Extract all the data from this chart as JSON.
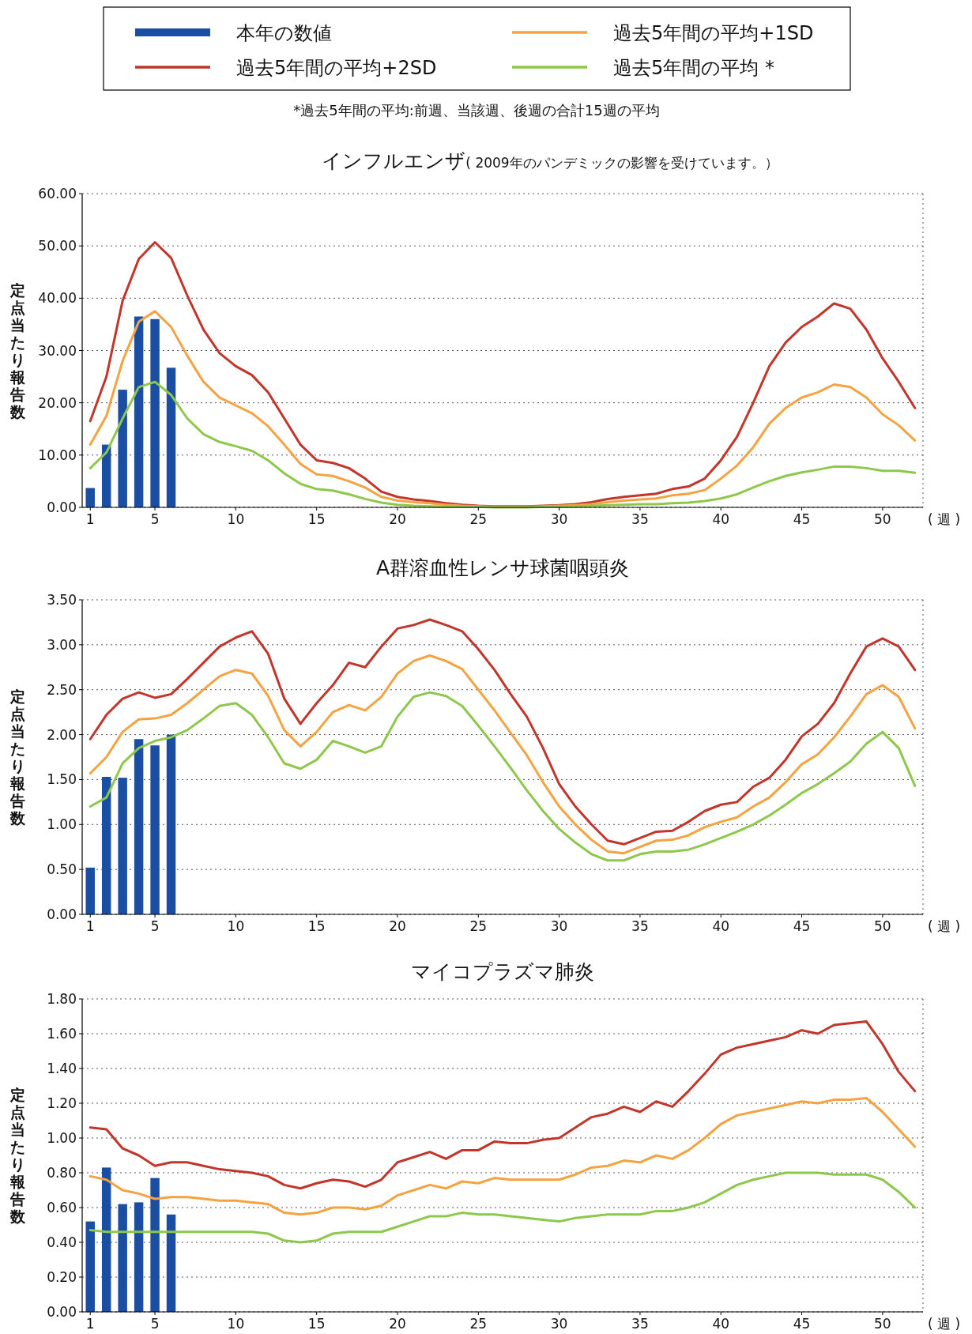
{
  "chart_data": [
    {
      "type": "line",
      "title": "インフルエンザ",
      "subtitle": "( 2009年のパンデミックの影響を受けています。）",
      "ylabel": "定点当たり報告数",
      "xlabel": "( 週 )",
      "legend": "top",
      "grid": "y",
      "annotations": [
        "*過去5年間の平均:前週、当該週、後週の合計15週の平均"
      ],
      "x": [
        1,
        2,
        3,
        4,
        5,
        6,
        7,
        8,
        9,
        10,
        11,
        12,
        13,
        14,
        15,
        16,
        17,
        18,
        19,
        20,
        21,
        22,
        23,
        24,
        25,
        26,
        27,
        28,
        29,
        30,
        31,
        32,
        33,
        34,
        35,
        36,
        37,
        38,
        39,
        40,
        41,
        42,
        43,
        44,
        45,
        46,
        47,
        48,
        49,
        50,
        51,
        52
      ],
      "xlim": [
        0.5,
        52.5
      ],
      "xticks": [
        1,
        5,
        10,
        15,
        20,
        25,
        30,
        35,
        40,
        45,
        50
      ],
      "ylim": [
        0,
        60
      ],
      "yticks": [
        {
          "value": 0,
          "label": "0.00"
        },
        {
          "value": 10,
          "label": "10.00"
        },
        {
          "value": 20,
          "label": "20.00"
        },
        {
          "value": 30,
          "label": "30.00"
        },
        {
          "value": 40,
          "label": "40.00"
        },
        {
          "value": 50,
          "label": "50.00"
        },
        {
          "value": 60,
          "label": "60.00"
        }
      ],
      "series": [
        {
          "type": "bar",
          "name": "本年の数値",
          "color": "#1a4ea2",
          "x": [
            1,
            2,
            3,
            4,
            5,
            6
          ],
          "values": [
            3.7,
            12,
            22.5,
            36.5,
            36,
            26.7
          ]
        },
        {
          "name": "過去5年間の平均+2SD",
          "color": "#c1352a",
          "values": [
            16.5,
            25,
            39.5,
            47.5,
            50.7,
            47.7,
            40.5,
            34,
            29.5,
            27,
            25.3,
            22,
            17,
            12,
            9,
            8.5,
            7.5,
            5.5,
            3,
            2,
            1.5,
            1.2,
            0.8,
            0.5,
            0.3,
            0.2,
            0.2,
            0.2,
            0.3,
            0.4,
            0.6,
            1,
            1.6,
            2,
            2.3,
            2.6,
            3.5,
            4,
            5.5,
            9,
            13.5,
            20,
            27,
            31.5,
            34.5,
            36.5,
            39,
            38,
            34,
            28.5,
            24,
            19
          ]
        },
        {
          "name": "過去5年間の平均+1SD",
          "color": "#f4a340",
          "values": [
            12,
            17.5,
            28,
            35.5,
            37.5,
            34.5,
            29,
            24,
            21,
            19.5,
            18,
            15.5,
            12,
            8.3,
            6.3,
            6,
            5,
            3.8,
            2,
            1.3,
            1,
            0.8,
            0.5,
            0.3,
            0.2,
            0.1,
            0.1,
            0.1,
            0.2,
            0.3,
            0.4,
            0.6,
            1,
            1.3,
            1.5,
            1.7,
            2.3,
            2.6,
            3.3,
            5.5,
            8,
            11.5,
            16,
            19,
            21,
            22,
            23.5,
            23,
            21,
            17.8,
            15.7,
            12.8
          ]
        },
        {
          "name": "過去5年間の平均 *",
          "color": "#8dc84c",
          "values": [
            7.5,
            10.5,
            17,
            23,
            24,
            21.5,
            17,
            14,
            12.5,
            11.7,
            10.8,
            9,
            6.5,
            4.5,
            3.5,
            3.2,
            2.5,
            1.6,
            0.9,
            0.5,
            0.3,
            0.2,
            0.1,
            0.1,
            0.1,
            0,
            0,
            0,
            0.1,
            0.1,
            0.2,
            0.3,
            0.4,
            0.5,
            0.6,
            0.6,
            0.8,
            0.9,
            1.2,
            1.7,
            2.5,
            3.8,
            5,
            6,
            6.7,
            7.2,
            7.8,
            7.8,
            7.5,
            7,
            7,
            6.6
          ]
        }
      ]
    },
    {
      "type": "line",
      "title": "A群溶血性レンサ球菌咽頭炎",
      "ylabel": "定点当たり報告数",
      "xlabel": "( 週 )",
      "grid": "y",
      "x": [
        1,
        2,
        3,
        4,
        5,
        6,
        7,
        8,
        9,
        10,
        11,
        12,
        13,
        14,
        15,
        16,
        17,
        18,
        19,
        20,
        21,
        22,
        23,
        24,
        25,
        26,
        27,
        28,
        29,
        30,
        31,
        32,
        33,
        34,
        35,
        36,
        37,
        38,
        39,
        40,
        41,
        42,
        43,
        44,
        45,
        46,
        47,
        48,
        49,
        50,
        51,
        52
      ],
      "xlim": [
        0.5,
        52.5
      ],
      "xticks": [
        1,
        5,
        10,
        15,
        20,
        25,
        30,
        35,
        40,
        45,
        50
      ],
      "ylim": [
        0,
        3.5
      ],
      "yticks": [
        {
          "value": 0,
          "label": "0.00"
        },
        {
          "value": 0.5,
          "label": "0.50"
        },
        {
          "value": 1,
          "label": "1.00"
        },
        {
          "value": 1.5,
          "label": "1.50"
        },
        {
          "value": 2,
          "label": "2.00"
        },
        {
          "value": 2.5,
          "label": "2.50"
        },
        {
          "value": 3,
          "label": "3.00"
        },
        {
          "value": 3.5,
          "label": "3.50"
        }
      ],
      "series": [
        {
          "type": "bar",
          "color": "#1a4ea2",
          "x": [
            1,
            2,
            3,
            4,
            5,
            6
          ],
          "values": [
            0.52,
            1.53,
            1.52,
            1.95,
            1.88,
            2.0
          ]
        },
        {
          "color": "#c1352a",
          "values": [
            1.95,
            2.22,
            2.4,
            2.47,
            2.41,
            2.45,
            2.62,
            2.8,
            2.98,
            3.08,
            3.15,
            2.9,
            2.4,
            2.12,
            2.35,
            2.55,
            2.8,
            2.75,
            2.98,
            3.18,
            3.22,
            3.28,
            3.22,
            3.15,
            2.95,
            2.72,
            2.45,
            2.2,
            1.85,
            1.45,
            1.2,
            1.0,
            0.82,
            0.78,
            0.85,
            0.92,
            0.93,
            1.03,
            1.15,
            1.22,
            1.25,
            1.42,
            1.52,
            1.72,
            1.98,
            2.12,
            2.35,
            2.68,
            2.98,
            3.07,
            2.98,
            2.72
          ]
        },
        {
          "color": "#f4a340",
          "values": [
            1.57,
            1.75,
            2.03,
            2.17,
            2.18,
            2.22,
            2.35,
            2.5,
            2.65,
            2.72,
            2.68,
            2.43,
            2.05,
            1.87,
            2.03,
            2.25,
            2.33,
            2.27,
            2.42,
            2.68,
            2.82,
            2.88,
            2.82,
            2.73,
            2.5,
            2.27,
            2.02,
            1.77,
            1.47,
            1.2,
            1.0,
            0.83,
            0.7,
            0.68,
            0.75,
            0.82,
            0.83,
            0.88,
            0.97,
            1.03,
            1.08,
            1.2,
            1.3,
            1.47,
            1.67,
            1.78,
            1.97,
            2.2,
            2.45,
            2.55,
            2.42,
            2.07
          ]
        },
        {
          "color": "#8dc84c",
          "values": [
            1.2,
            1.3,
            1.68,
            1.85,
            1.93,
            1.97,
            2.05,
            2.18,
            2.32,
            2.35,
            2.22,
            1.97,
            1.68,
            1.62,
            1.72,
            1.93,
            1.87,
            1.8,
            1.87,
            2.2,
            2.42,
            2.47,
            2.43,
            2.32,
            2.1,
            1.87,
            1.63,
            1.38,
            1.15,
            0.95,
            0.8,
            0.67,
            0.6,
            0.6,
            0.67,
            0.7,
            0.7,
            0.72,
            0.78,
            0.85,
            0.92,
            1.0,
            1.1,
            1.22,
            1.35,
            1.45,
            1.57,
            1.7,
            1.9,
            2.03,
            1.85,
            1.43
          ]
        }
      ]
    },
    {
      "type": "line",
      "title": "マイコプラズマ肺炎",
      "ylabel": "定点当たり報告数",
      "xlabel": "( 週 )",
      "grid": "y",
      "x": [
        1,
        2,
        3,
        4,
        5,
        6,
        7,
        8,
        9,
        10,
        11,
        12,
        13,
        14,
        15,
        16,
        17,
        18,
        19,
        20,
        21,
        22,
        23,
        24,
        25,
        26,
        27,
        28,
        29,
        30,
        31,
        32,
        33,
        34,
        35,
        36,
        37,
        38,
        39,
        40,
        41,
        42,
        43,
        44,
        45,
        46,
        47,
        48,
        49,
        50,
        51,
        52
      ],
      "xlim": [
        0.5,
        52.5
      ],
      "xticks": [
        1,
        5,
        10,
        15,
        20,
        25,
        30,
        35,
        40,
        45,
        50
      ],
      "ylim": [
        0,
        1.8
      ],
      "yticks": [
        {
          "value": 0,
          "label": "0.00"
        },
        {
          "value": 0.2,
          "label": "0.20"
        },
        {
          "value": 0.4,
          "label": "0.40"
        },
        {
          "value": 0.6,
          "label": "0.60"
        },
        {
          "value": 0.8,
          "label": "0.80"
        },
        {
          "value": 1,
          "label": "1.00"
        },
        {
          "value": 1.2,
          "label": "1.20"
        },
        {
          "value": 1.4,
          "label": "1.40"
        },
        {
          "value": 1.6,
          "label": "1.60"
        },
        {
          "value": 1.8,
          "label": "1.80"
        }
      ],
      "series": [
        {
          "type": "bar",
          "color": "#1a4ea2",
          "x": [
            1,
            2,
            3,
            4,
            5,
            6
          ],
          "values": [
            0.52,
            0.83,
            0.62,
            0.63,
            0.77,
            0.56
          ]
        },
        {
          "color": "#c1352a",
          "values": [
            1.06,
            1.05,
            0.94,
            0.9,
            0.84,
            0.86,
            0.86,
            0.84,
            0.82,
            0.81,
            0.8,
            0.78,
            0.73,
            0.71,
            0.74,
            0.76,
            0.75,
            0.72,
            0.76,
            0.86,
            0.89,
            0.92,
            0.88,
            0.93,
            0.93,
            0.98,
            0.97,
            0.97,
            0.99,
            1.0,
            1.06,
            1.12,
            1.14,
            1.18,
            1.15,
            1.21,
            1.18,
            1.27,
            1.37,
            1.48,
            1.52,
            1.54,
            1.56,
            1.58,
            1.62,
            1.6,
            1.65,
            1.66,
            1.67,
            1.54,
            1.38,
            1.27
          ]
        },
        {
          "color": "#f4a340",
          "values": [
            0.78,
            0.76,
            0.7,
            0.68,
            0.65,
            0.66,
            0.66,
            0.65,
            0.64,
            0.64,
            0.63,
            0.62,
            0.57,
            0.56,
            0.57,
            0.6,
            0.6,
            0.59,
            0.61,
            0.67,
            0.7,
            0.73,
            0.71,
            0.75,
            0.74,
            0.77,
            0.76,
            0.76,
            0.76,
            0.76,
            0.79,
            0.83,
            0.84,
            0.87,
            0.86,
            0.9,
            0.88,
            0.93,
            1.0,
            1.08,
            1.13,
            1.15,
            1.17,
            1.19,
            1.21,
            1.2,
            1.22,
            1.22,
            1.23,
            1.15,
            1.05,
            0.95
          ]
        },
        {
          "color": "#8dc84c",
          "values": [
            0.47,
            0.46,
            0.46,
            0.46,
            0.46,
            0.46,
            0.46,
            0.46,
            0.46,
            0.46,
            0.46,
            0.45,
            0.41,
            0.4,
            0.41,
            0.45,
            0.46,
            0.46,
            0.46,
            0.49,
            0.52,
            0.55,
            0.55,
            0.57,
            0.56,
            0.56,
            0.55,
            0.54,
            0.53,
            0.52,
            0.54,
            0.55,
            0.56,
            0.56,
            0.56,
            0.58,
            0.58,
            0.6,
            0.63,
            0.68,
            0.73,
            0.76,
            0.78,
            0.8,
            0.8,
            0.8,
            0.79,
            0.79,
            0.79,
            0.76,
            0.69,
            0.6
          ]
        }
      ]
    }
  ]
}
